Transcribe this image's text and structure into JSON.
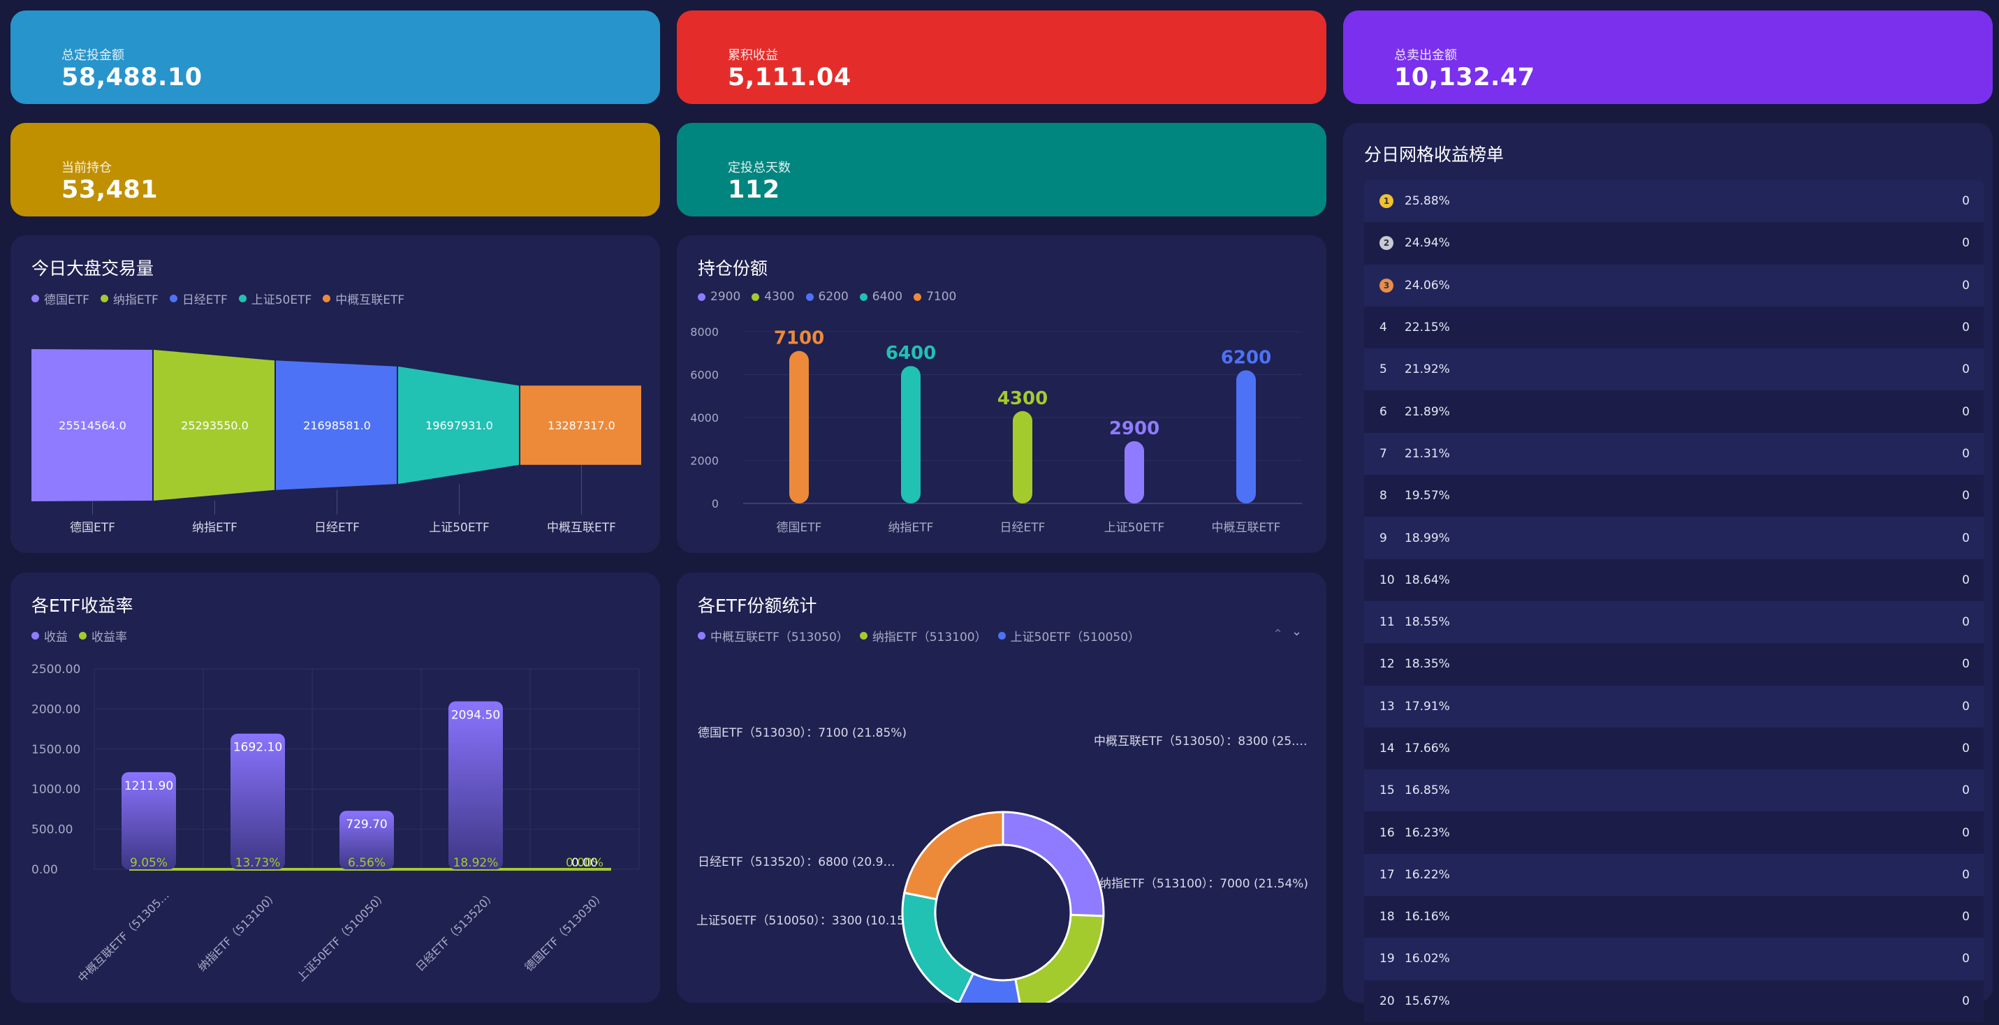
{
  "stats": [
    {
      "label": "总定投金额",
      "value": "58,488.10",
      "color": "#2794cc"
    },
    {
      "label": "累积收益",
      "value": "5,111.04",
      "color": "#e42d2b"
    },
    {
      "label": "总卖出金额",
      "value": "10,132.47",
      "color": "#7a30ec"
    },
    {
      "label": "当前持仓",
      "value": "53,481",
      "color": "#c09000"
    },
    {
      "label": "定投总天数",
      "value": "112",
      "color": "#00857f"
    }
  ],
  "panels": {
    "volume": {
      "title": "今日大盘交易量"
    },
    "holdings": {
      "title": "持仓份额"
    },
    "returns": {
      "title": "各ETF收益率"
    },
    "shares": {
      "title": "各ETF份额统计",
      "pager_up": "⌃",
      "pager_down": "⌄"
    },
    "ranking": {
      "title": "分日网格收益榜单"
    }
  },
  "chart_data": [
    {
      "type": "funnel",
      "title": "今日大盘交易量",
      "categories": [
        "德国ETF",
        "纳指ETF",
        "日经ETF",
        "上证50ETF",
        "中概互联ETF"
      ],
      "values": [
        25514564.0,
        25293550.0,
        21698581.0,
        19697931.0,
        13287317.0
      ],
      "labels": [
        "25514564.0",
        "25293550.0",
        "21698581.0",
        "19697931.0",
        "13287317.0"
      ],
      "legend": [
        "德国ETF",
        "纳指ETF",
        "日经ETF",
        "上证50ETF",
        "中概互联ETF"
      ],
      "colors": [
        "#8f7bff",
        "#a3cb2e",
        "#4e72f6",
        "#21c1b4",
        "#ec8a3a"
      ]
    },
    {
      "type": "bar",
      "title": "持仓份额",
      "categories": [
        "德国ETF",
        "纳指ETF",
        "日经ETF",
        "上证50ETF",
        "中概互联ETF"
      ],
      "values": [
        7100,
        6400,
        4300,
        2900,
        6200
      ],
      "labels": [
        "7100",
        "6400",
        "4300",
        "2900",
        "6200"
      ],
      "legend": [
        "2900",
        "4300",
        "6200",
        "6400",
        "7100"
      ],
      "legend_colors": [
        "#8f7bff",
        "#a3cb2e",
        "#4e72f6",
        "#21c1b4",
        "#ec8a3a"
      ],
      "bar_colors": [
        "#ec8a3a",
        "#21c1b4",
        "#a3cb2e",
        "#8f7bff",
        "#4e72f6"
      ],
      "ylim": [
        0,
        8000
      ],
      "yticks": [
        "0",
        "2000",
        "4000",
        "6000",
        "8000"
      ]
    },
    {
      "type": "bar",
      "title": "各ETF收益率",
      "categories": [
        "中概互联ETF（513050）",
        "纳指ETF（513100）",
        "上证50ETF（510050）",
        "日经ETF（513520）",
        "德国ETF（513030）"
      ],
      "category_labels": [
        "中概互联ETF（51305…",
        "纳指ETF（513100）",
        "上证50ETF（510050）",
        "日经ETF（513520）",
        "德国ETF（513030）"
      ],
      "series": [
        {
          "name": "收益",
          "values": [
            1211.9,
            1692.1,
            729.7,
            2094.5,
            0.0
          ],
          "labels": [
            "1211.90",
            "1692.10",
            "729.70",
            "2094.50",
            "0.00"
          ]
        },
        {
          "name": "收益率",
          "values": [
            9.05,
            13.73,
            6.56,
            18.92,
            0.0
          ],
          "labels": [
            "9.05%",
            "13.73%",
            "6.56%",
            "18.92%",
            "0.00%"
          ]
        }
      ],
      "legend_colors": [
        "#8f7bff",
        "#a3cb2e"
      ],
      "ylim": [
        0,
        2500
      ],
      "yticks": [
        "0.00",
        "500.00",
        "1000.00",
        "1500.00",
        "2000.00",
        "2500.00"
      ]
    },
    {
      "type": "pie",
      "title": "各ETF份额统计",
      "legend": [
        "中概互联ETF（513050）",
        "纳指ETF（513100）",
        "上证50ETF（510050）"
      ],
      "legend_colors": [
        "#8f7bff",
        "#a3cb2e",
        "#4e72f6"
      ],
      "slices": [
        {
          "name": "中概互联ETF（513050）",
          "value": 8300,
          "label": "中概互联ETF（513050）：8300 (25.…",
          "color": "#8f7bff"
        },
        {
          "name": "纳指ETF（513100）",
          "value": 7000,
          "label": "纳指ETF（513100）：7000 (21.54%)",
          "color": "#a3cb2e"
        },
        {
          "name": "上证50ETF（510050）",
          "value": 3300,
          "label": "上证50ETF（510050）：3300 (10.15%)",
          "color": "#4e72f6"
        },
        {
          "name": "日经ETF（513520）",
          "value": 6800,
          "label": "日经ETF（513520）：6800 (20.9…",
          "color": "#21c1b4"
        },
        {
          "name": "德国ETF（513030）",
          "value": 7100,
          "label": "德国ETF（513030）：7100 (21.85%)",
          "color": "#ec8a3a"
        }
      ]
    }
  ],
  "ranking": [
    {
      "no": "1",
      "pct": "25.88%",
      "amt": "0",
      "medal": "#f0c232"
    },
    {
      "no": "2",
      "pct": "24.94%",
      "amt": "0",
      "medal": "#c8cad6"
    },
    {
      "no": "3",
      "pct": "24.06%",
      "amt": "0",
      "medal": "#e88d4c"
    },
    {
      "no": "4",
      "pct": "22.15%",
      "amt": "0"
    },
    {
      "no": "5",
      "pct": "21.92%",
      "amt": "0"
    },
    {
      "no": "6",
      "pct": "21.89%",
      "amt": "0"
    },
    {
      "no": "7",
      "pct": "21.31%",
      "amt": "0"
    },
    {
      "no": "8",
      "pct": "19.57%",
      "amt": "0"
    },
    {
      "no": "9",
      "pct": "18.99%",
      "amt": "0"
    },
    {
      "no": "10",
      "pct": "18.64%",
      "amt": "0"
    },
    {
      "no": "11",
      "pct": "18.55%",
      "amt": "0"
    },
    {
      "no": "12",
      "pct": "18.35%",
      "amt": "0"
    },
    {
      "no": "13",
      "pct": "17.91%",
      "amt": "0"
    },
    {
      "no": "14",
      "pct": "17.66%",
      "amt": "0"
    },
    {
      "no": "15",
      "pct": "16.85%",
      "amt": "0"
    },
    {
      "no": "16",
      "pct": "16.23%",
      "amt": "0"
    },
    {
      "no": "17",
      "pct": "16.22%",
      "amt": "0"
    },
    {
      "no": "18",
      "pct": "16.16%",
      "amt": "0"
    },
    {
      "no": "19",
      "pct": "16.02%",
      "amt": "0"
    },
    {
      "no": "20",
      "pct": "15.67%",
      "amt": "0"
    }
  ]
}
